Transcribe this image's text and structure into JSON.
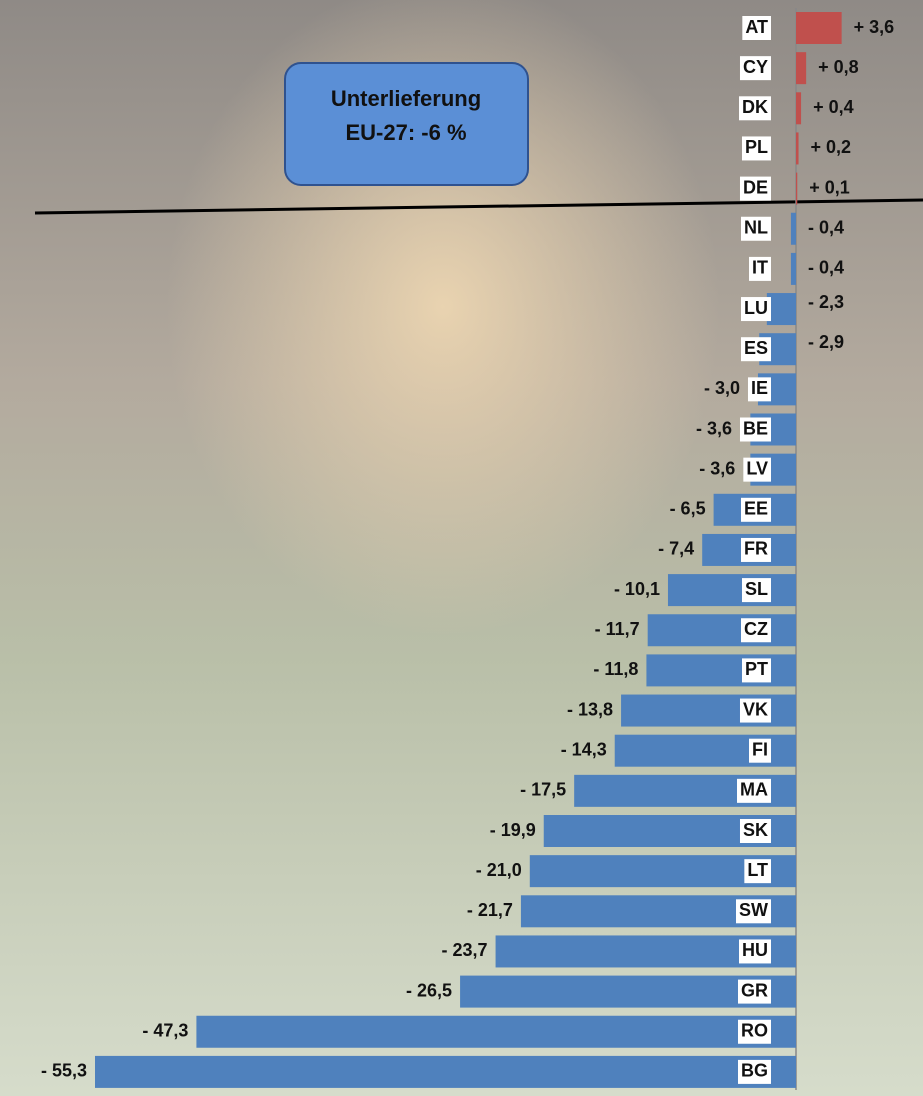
{
  "chart_data": {
    "type": "bar",
    "orientation": "horizontal",
    "annotation": [
      "Unterlieferung",
      "EU-27: -6 %"
    ],
    "categories": [
      "AT",
      "CY",
      "DK",
      "PL",
      "DE",
      "NL",
      "IT",
      "LU",
      "ES",
      "IE",
      "BE",
      "LV",
      "EE",
      "FR",
      "SL",
      "CZ",
      "PT",
      "VK",
      "FI",
      "MA",
      "SK",
      "LT",
      "SW",
      "HU",
      "GR",
      "RO",
      "BG"
    ],
    "values": [
      3.6,
      0.8,
      0.4,
      0.2,
      0.1,
      -0.4,
      -0.4,
      -2.3,
      -2.9,
      -3.0,
      -3.6,
      -3.6,
      -6.5,
      -7.4,
      -10.1,
      -11.7,
      -11.8,
      -13.8,
      -14.3,
      -17.5,
      -19.9,
      -21.0,
      -21.7,
      -23.7,
      -26.5,
      -47.3,
      -55.3
    ],
    "value_labels": [
      "+ 3,6",
      "+ 0,8",
      "+ 0,4",
      "+ 0,2",
      "+ 0,1",
      "- 0,4",
      "- 0,4",
      "- 2,3",
      "- 2,9",
      "- 3,0",
      "- 3,6",
      "- 3,6",
      "- 6,5",
      "- 7,4",
      "- 10,1",
      "- 11,7",
      "- 11,8",
      "- 13,8",
      "- 14,3",
      "- 17,5",
      "- 19,9",
      "- 21,0",
      "- 21,7",
      "- 23,7",
      "- 26,5",
      "- 47,3",
      "- 55,3"
    ],
    "positive_color": "#c0504d",
    "negative_color": "#4f81bd"
  }
}
